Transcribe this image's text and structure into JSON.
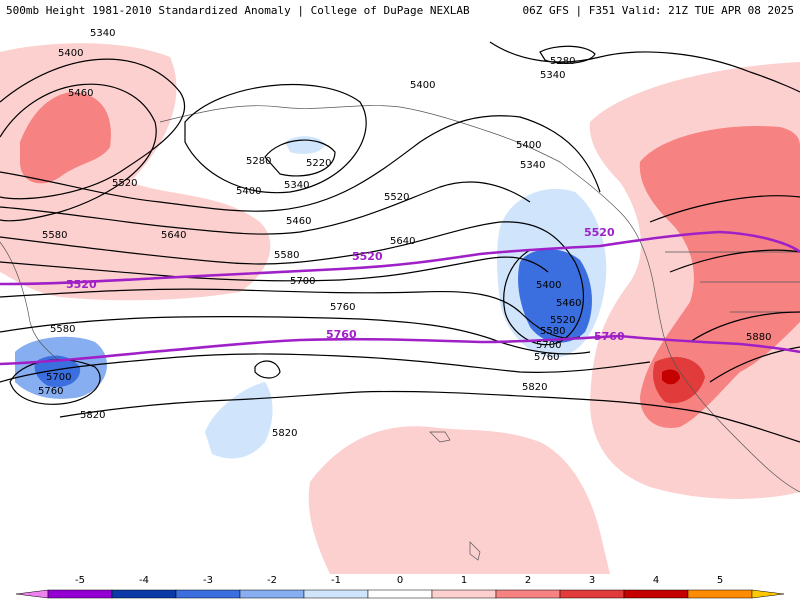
{
  "header": {
    "left": "500mb Height 1981-2010 Standardized Anomaly | College of DuPage NEXLAB",
    "right": "06Z GFS | F351 Valid: 21Z TUE APR 08 2025"
  },
  "contour_labels": [
    "5340",
    "5400",
    "5460",
    "5520",
    "5580",
    "5640",
    "5700",
    "5760",
    "5820",
    "5280",
    "5220",
    "5880"
  ],
  "highlight_labels": {
    "a": "5520",
    "b": "5760"
  },
  "colorbar": {
    "ticks": [
      "-5",
      "-4",
      "-3",
      "-2",
      "-1",
      "0",
      "1",
      "2",
      "3",
      "4",
      "5"
    ],
    "colors": [
      "#ee82ee",
      "#9400d3",
      "#0b3aa8",
      "#3b6fe0",
      "#86aef0",
      "#d0e4fb",
      "#ffffff",
      "#fdd0d0",
      "#f68282",
      "#e23b3b",
      "#c40000",
      "#ff8c00",
      "#ffc800"
    ]
  },
  "colors": {
    "highlight": "#a020c8",
    "contour": "#000000",
    "coast": "#555555"
  }
}
